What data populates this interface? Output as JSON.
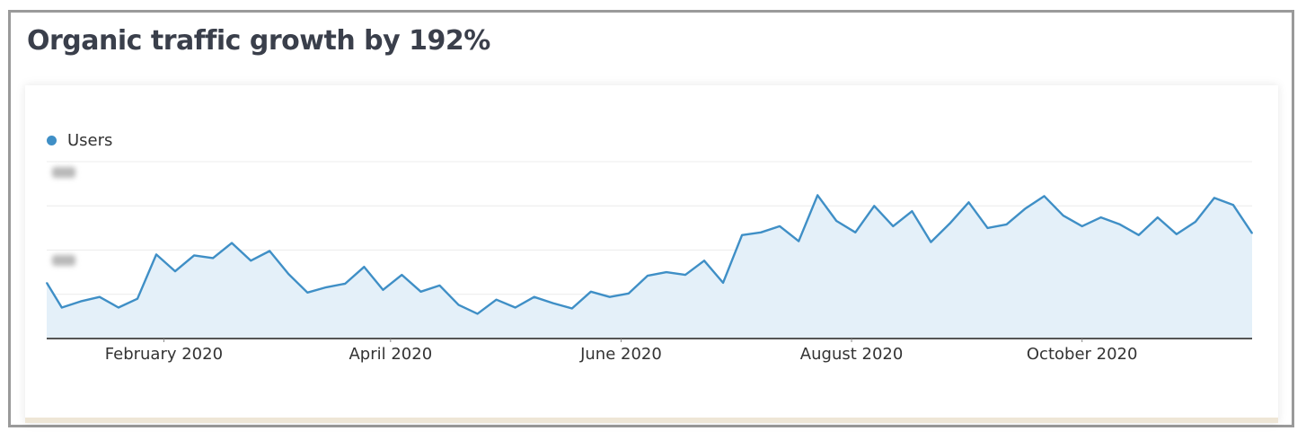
{
  "title": "Organic traffic growth by 192%",
  "colors": {
    "line": "#3f8fc6",
    "area": "#e4f0f9",
    "legend_dot": "#3f8fc6"
  },
  "chart_data": {
    "type": "area",
    "title": "Organic traffic growth by 192%",
    "legend": {
      "entries": [
        "Users"
      ],
      "placement": "top-left"
    },
    "x_tick_labels": [
      "February 2020",
      "April 2020",
      "June 2020",
      "August 2020",
      "October 2020"
    ],
    "x_tick_dates": [
      "2020-02-01",
      "2020-04-01",
      "2020-06-01",
      "2020-08-01",
      "2020-10-01"
    ],
    "x_range": [
      "2020-01-01",
      "2020-11-15"
    ],
    "y_ticks": [
      100,
      200
    ],
    "ylim": [
      0,
      200
    ],
    "grid": true,
    "series": [
      {
        "name": "Users",
        "dates": [
          "2020-01-01",
          "2020-01-05",
          "2020-01-10",
          "2020-01-15",
          "2020-01-20",
          "2020-01-25",
          "2020-01-30",
          "2020-02-04",
          "2020-02-09",
          "2020-02-14",
          "2020-02-19",
          "2020-02-24",
          "2020-02-29",
          "2020-03-05",
          "2020-03-10",
          "2020-03-15",
          "2020-03-20",
          "2020-03-25",
          "2020-03-30",
          "2020-04-04",
          "2020-04-09",
          "2020-04-14",
          "2020-04-19",
          "2020-04-24",
          "2020-04-29",
          "2020-05-04",
          "2020-05-09",
          "2020-05-14",
          "2020-05-19",
          "2020-05-24",
          "2020-05-29",
          "2020-06-03",
          "2020-06-08",
          "2020-06-13",
          "2020-06-18",
          "2020-06-23",
          "2020-06-28",
          "2020-07-03",
          "2020-07-08",
          "2020-07-13",
          "2020-07-18",
          "2020-07-23",
          "2020-07-28",
          "2020-08-02",
          "2020-08-07",
          "2020-08-12",
          "2020-08-17",
          "2020-08-22",
          "2020-08-27",
          "2020-09-01",
          "2020-09-06",
          "2020-09-11",
          "2020-09-16",
          "2020-09-21",
          "2020-09-26",
          "2020-10-01",
          "2020-10-06",
          "2020-10-11",
          "2020-10-16",
          "2020-10-21",
          "2020-10-26",
          "2020-10-31",
          "2020-11-05",
          "2020-11-10",
          "2020-11-15"
        ],
        "values": [
          63,
          35,
          42,
          47,
          35,
          45,
          95,
          76,
          94,
          91,
          108,
          88,
          99,
          73,
          52,
          58,
          62,
          81,
          55,
          72,
          53,
          60,
          38,
          28,
          44,
          35,
          47,
          40,
          34,
          53,
          47,
          51,
          71,
          75,
          72,
          88,
          63,
          117,
          120,
          127,
          110,
          162,
          133,
          120,
          150,
          127,
          144,
          109,
          130,
          154,
          125,
          129,
          147,
          161,
          139,
          127,
          137,
          129,
          117,
          137,
          118,
          132,
          159,
          151,
          119
        ]
      }
    ]
  }
}
